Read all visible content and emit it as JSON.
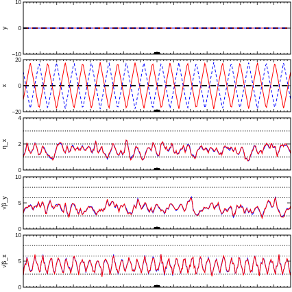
{
  "chart_data": [
    {
      "type": "line",
      "ylabel": "y",
      "ylim": [
        -10,
        10
      ],
      "yticks": [
        -10,
        0,
        10
      ],
      "ytick_labels": [
        "−10",
        "0",
        "10"
      ],
      "reference_lines": [
        {
          "y": 0,
          "style": "dash-black"
        }
      ],
      "series": [
        {
          "color": "#ff0000",
          "style": "solid",
          "shape": "flat",
          "y": [
            0,
            0
          ]
        },
        {
          "color": "#0000ff",
          "style": "dashed",
          "shape": "flat",
          "y": [
            0,
            0
          ]
        }
      ]
    },
    {
      "type": "line",
      "ylabel": "x",
      "ylim": [
        -20,
        20
      ],
      "yticks": [
        -20,
        0,
        20
      ],
      "ytick_labels": [
        "−20",
        "0",
        "20"
      ],
      "reference_lines": [
        {
          "y": 0,
          "style": "dash-black"
        }
      ],
      "series": [
        {
          "color": "#ff0000",
          "style": "solid",
          "shape": "triangle",
          "amplitude": 18,
          "cycles": 15.3,
          "phase": 0.1
        },
        {
          "color": "#0000ff",
          "style": "dashed",
          "shape": "triangle",
          "amplitude": 18,
          "cycles": 15.3,
          "phase": 0.6
        }
      ]
    },
    {
      "type": "line",
      "ylabel": "η_x",
      "ylim": [
        0,
        4
      ],
      "yticks": [
        0,
        2,
        4
      ],
      "ytick_labels": [
        "0",
        "2",
        "4"
      ],
      "reference_lines": [
        {
          "y": 1,
          "style": "dotted"
        },
        {
          "y": 2,
          "style": "dotted"
        },
        {
          "y": 3,
          "style": "dotted"
        }
      ],
      "series": [
        {
          "color": "#0000ff",
          "style": "solid",
          "shape": "noise",
          "mean": 1.55,
          "spread": 0.75,
          "min": 0.1,
          "max": 2.9,
          "seed": 7
        },
        {
          "color": "#ff0000",
          "style": "solid",
          "shape": "noise-follow",
          "jitter": 0.12,
          "seed": 11
        }
      ]
    },
    {
      "type": "line",
      "ylabel": "√β_y",
      "ylim": [
        0,
        10
      ],
      "yticks": [
        0,
        5,
        10
      ],
      "ytick_labels": [
        "0",
        "5",
        "10"
      ],
      "reference_lines": [
        {
          "y": 2.5,
          "style": "dotted"
        },
        {
          "y": 6,
          "style": "dotted"
        },
        {
          "y": 8,
          "style": "dotted"
        }
      ],
      "series": [
        {
          "color": "#0000ff",
          "style": "solid",
          "shape": "noise",
          "mean": 4.2,
          "spread": 1.8,
          "min": 1.2,
          "max": 7.2,
          "seed": 23
        },
        {
          "color": "#ff0000",
          "style": "solid",
          "shape": "noise-follow",
          "jitter": 0.3,
          "seed": 29
        }
      ]
    },
    {
      "type": "line",
      "ylabel": "√β_x",
      "ylim": [
        0,
        10
      ],
      "yticks": [
        0,
        5,
        10
      ],
      "ytick_labels": [
        "0",
        "5",
        "10"
      ],
      "reference_lines": [
        {
          "y": 2.5,
          "style": "dotted"
        },
        {
          "y": 6,
          "style": "dotted"
        },
        {
          "y": 8,
          "style": "dotted"
        }
      ],
      "series": [
        {
          "color": "#0000ff",
          "style": "solid",
          "shape": "zigzag",
          "low": 2.6,
          "high": 5.8,
          "cycles": 34,
          "jitter": 0.6,
          "seed": 41
        },
        {
          "color": "#ff0000",
          "style": "solid",
          "shape": "noise-follow",
          "jitter": 0.2,
          "seed": 43
        }
      ]
    }
  ]
}
